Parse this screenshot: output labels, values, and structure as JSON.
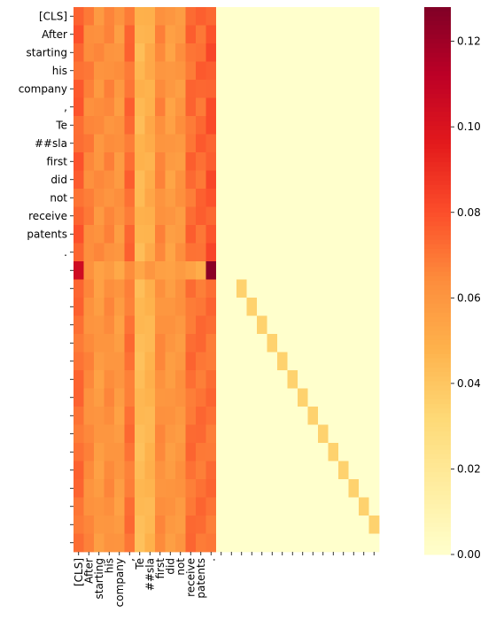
{
  "chart_data": {
    "type": "heatmap",
    "title": "",
    "xlabel": "",
    "ylabel": "",
    "n_rows": 30,
    "n_cols": 30,
    "row_labels": [
      "[CLS]",
      "After",
      "starting",
      "his",
      "company",
      ",",
      "Te",
      "##sla",
      "first",
      "did",
      "not",
      "receive",
      "patents",
      ".",
      "",
      "",
      "",
      "",
      "",
      "",
      "",
      "",
      "",
      "",
      "",
      "",
      "",
      "",
      "",
      ""
    ],
    "col_labels": [
      "[CLS]",
      "After",
      "starting",
      "his",
      "company",
      ",",
      "Te",
      "##sla",
      "first",
      "did",
      "not",
      "receive",
      "patents",
      ".",
      "",
      "",
      "",
      "",
      "",
      "",
      "",
      "",
      "",
      "",
      "",
      "",
      "",
      "",
      "",
      ""
    ],
    "text_weights": [
      0.075,
      0.066,
      0.062,
      0.064,
      0.06,
      0.072,
      0.046,
      0.05,
      0.064,
      0.057,
      0.06,
      0.072,
      0.073,
      0.078
    ],
    "pad_row_weights": [
      0.072,
      0.064,
      0.058,
      0.063,
      0.058,
      0.07,
      0.044,
      0.047,
      0.063,
      0.059,
      0.06,
      0.071,
      0.071,
      0.071
    ],
    "special_row": {
      "row": 14,
      "values": [
        0.105,
        0.062,
        0.055,
        0.058,
        0.052,
        0.064,
        0.053,
        0.06,
        0.056,
        0.055,
        0.058,
        0.055,
        0.05,
        0.125
      ]
    },
    "pad_diagonal_value": 0.035,
    "background_value": 0.0,
    "vmin": 0.0,
    "vmax": 0.128,
    "colormap": "YlOrRd",
    "colorbar": {
      "ticks": [
        0.0,
        0.02,
        0.04,
        0.06,
        0.08,
        0.1,
        0.12
      ],
      "tick_labels": [
        "0.00",
        "0.02",
        "0.04",
        "0.06",
        "0.08",
        "0.10",
        "0.12"
      ]
    },
    "grid": false,
    "legend": "colorbar-right"
  }
}
